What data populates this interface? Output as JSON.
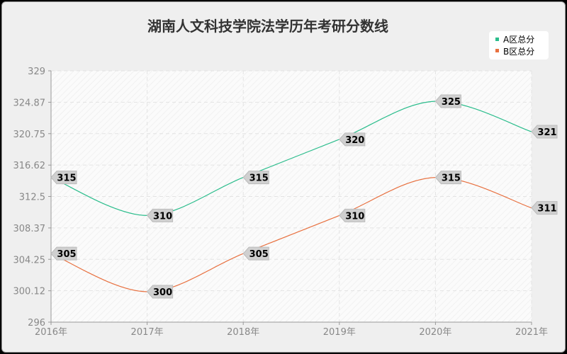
{
  "chart_data": {
    "type": "line",
    "title": "湖南人文科技学院法学历年考研分数线",
    "categories": [
      "2016年",
      "2017年",
      "2018年",
      "2019年",
      "2020年",
      "2021年"
    ],
    "series": [
      {
        "name": "A区总分",
        "color": "#2bbd8c",
        "values": [
          315,
          310,
          315,
          320,
          325,
          321
        ]
      },
      {
        "name": "B区总分",
        "color": "#e8703f",
        "values": [
          305,
          300,
          305,
          310,
          315,
          311
        ]
      }
    ],
    "yticks": [
      "296",
      "300.12",
      "304.25",
      "308.37",
      "312.5",
      "316.62",
      "320.75",
      "324.87",
      "329"
    ],
    "ylim": [
      296,
      329
    ],
    "grid": true,
    "legend": "top-right"
  }
}
